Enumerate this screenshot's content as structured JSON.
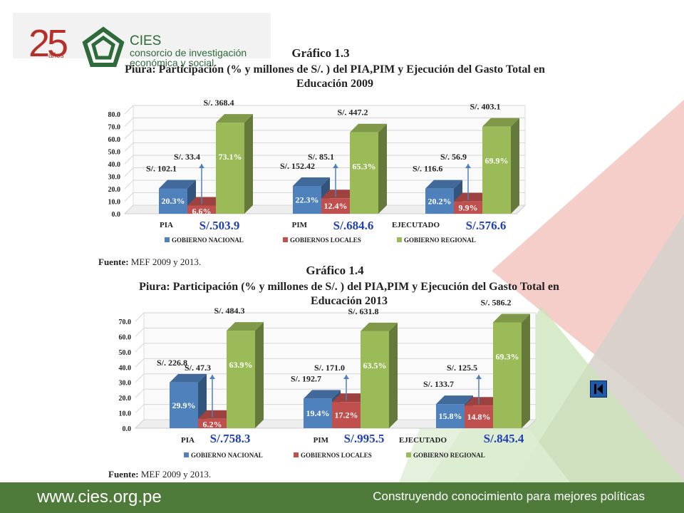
{
  "logo": {
    "years": "25",
    "years_suffix": "años",
    "name": "CIES",
    "subtitle": "consorcio de investigación económica y social"
  },
  "colors": {
    "nacional": "#4f81bd",
    "locales": "#c0504d",
    "regional": "#9bbb59",
    "total_label": "#1f3fb4",
    "footer": "#4e7b3a"
  },
  "chart_data": [
    {
      "type": "bar",
      "title_number": "Gráfico 1.3",
      "title": "Piura: Participación (% y millones de S/. ) del PIA,PIM y Ejecución del Gasto Total en Educación 2009",
      "categories": [
        "PIA",
        "PIM",
        "EJECUTADO"
      ],
      "totals": [
        "S/.503.9",
        "S/.684.6",
        "S/.576.6"
      ],
      "series": [
        {
          "name": "GOBIERNO NACIONAL",
          "values": [
            20.3,
            22.3,
            20.2
          ],
          "labels": [
            "20.3%",
            "22.3%",
            "20.2%"
          ],
          "amounts": [
            "S/. 102.1",
            "S/. 152.42",
            "S/. 116.6"
          ]
        },
        {
          "name": "GOBIERNOS LOCALES",
          "values": [
            6.6,
            12.4,
            9.9
          ],
          "labels": [
            "6.6%",
            "12.4%",
            "9.9%"
          ],
          "amounts": [
            "S/. 33.4",
            "S/. 85.1",
            "S/. 56.9"
          ]
        },
        {
          "name": "GOBIERNO REGIONAL",
          "values": [
            73.1,
            65.3,
            69.9
          ],
          "labels": [
            "73.1%",
            "65.3%",
            "69.9%"
          ],
          "amounts": [
            "S/. 368.4",
            "S/. 447.2",
            "S/. 403.1"
          ]
        }
      ],
      "yticks": [
        "0.0",
        "10.0",
        "20.0",
        "30.0",
        "40.0",
        "50.0",
        "60.0",
        "70.0",
        "80.0"
      ],
      "ylim": [
        0,
        80
      ],
      "legend_position": "bottom",
      "source_label": "Fuente:",
      "source_text": "MEF 2009 y 2013."
    },
    {
      "type": "bar",
      "title_number": "Gráfico 1.4",
      "title": "Piura: Participación (% y millones de S/. ) del PIA,PIM y Ejecución del Gasto Total en Educación 2013",
      "categories": [
        "PIA",
        "PIM",
        "EJECUTADO"
      ],
      "totals": [
        "S/.758.3",
        "S/.995.5",
        "S/.845.4"
      ],
      "series": [
        {
          "name": "GOBIERNO NACIONAL",
          "values": [
            29.9,
            19.4,
            15.8
          ],
          "labels": [
            "29.9%",
            "19.4%",
            "15.8%"
          ],
          "amounts": [
            "S/. 226.8",
            "S/. 192.7",
            "S/. 133.7"
          ]
        },
        {
          "name": "GOBIERNOS LOCALES",
          "values": [
            6.2,
            17.2,
            14.8
          ],
          "labels": [
            "6.2%",
            "17.2%",
            "14.8%"
          ],
          "amounts": [
            "S/. 47.3",
            "S/. 171.0",
            "S/. 125.5"
          ]
        },
        {
          "name": "GOBIERNO REGIONAL",
          "values": [
            63.9,
            63.5,
            69.3
          ],
          "labels": [
            "63.9%",
            "63.5%",
            "69.3%"
          ],
          "amounts": [
            "S/. 484.3",
            "S/. 631.8",
            "S/. 586.2"
          ]
        }
      ],
      "yticks": [
        "0.0",
        "10.0",
        "20.0",
        "30.0",
        "40.0",
        "50.0",
        "60.0",
        "70.0"
      ],
      "ylim": [
        0,
        70
      ],
      "legend_position": "bottom",
      "source_label": "Fuente:",
      "source_text": "MEF 2009 y 2013."
    }
  ],
  "footer": {
    "url": "www.cies.org.pe",
    "tagline": "Construyendo conocimiento para mejores políticas"
  },
  "nav": {
    "icon": "back-arrow-icon"
  }
}
